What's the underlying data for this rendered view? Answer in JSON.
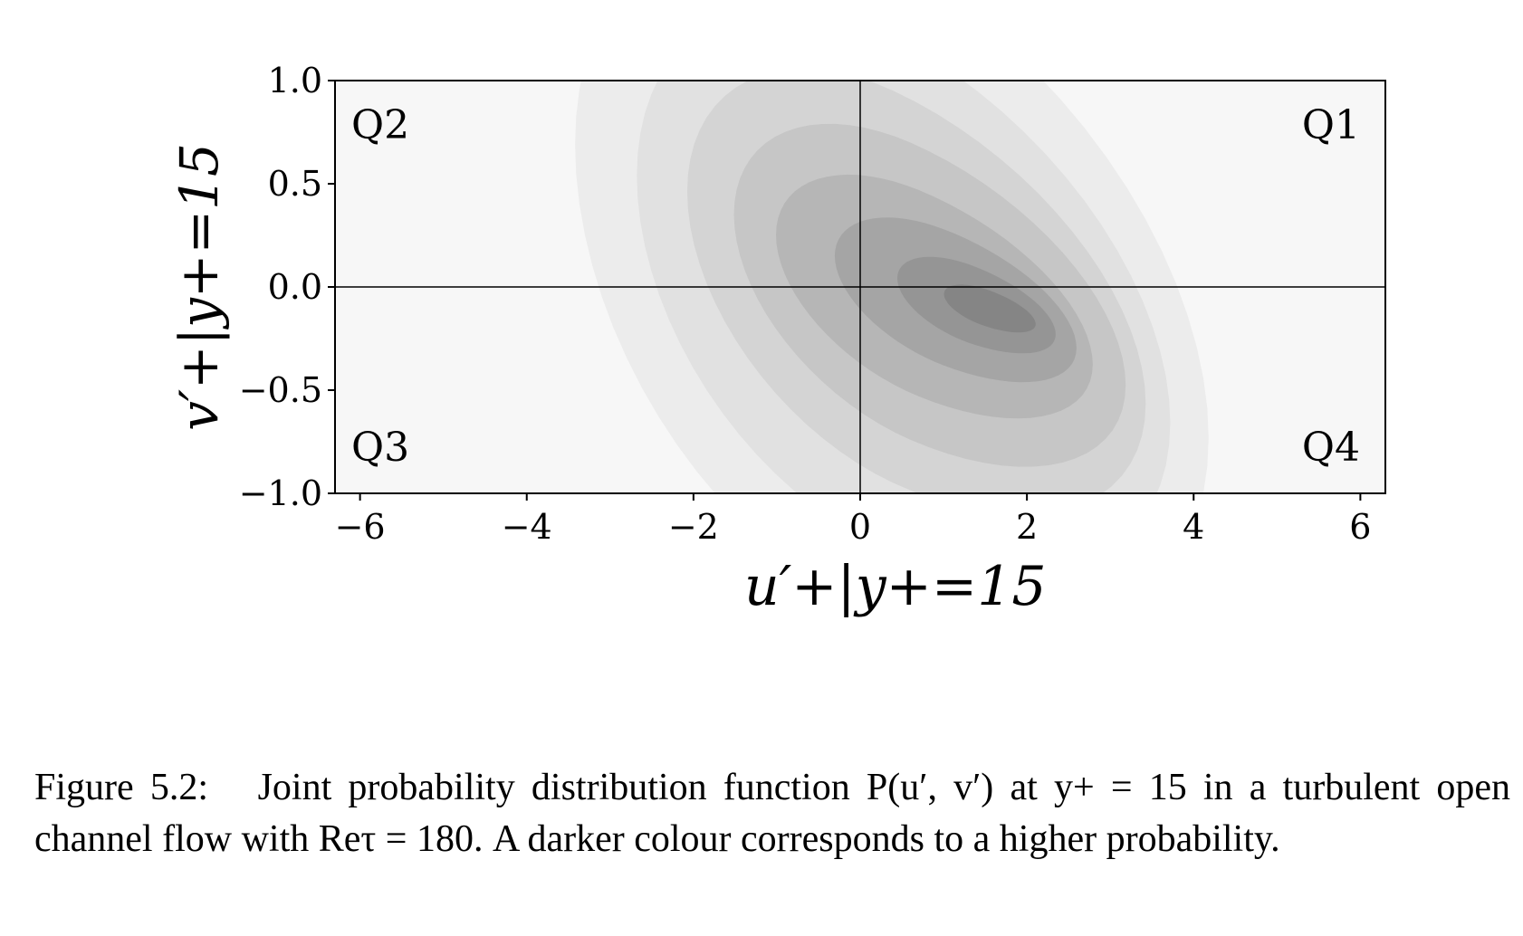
{
  "chart_data": {
    "type": "contour",
    "title": "",
    "xlabel": "u′+|y+=15",
    "ylabel": "v′+|y+=15",
    "xlim": [
      -6.3,
      6.3
    ],
    "ylim": [
      -1.0,
      1.0
    ],
    "xticks": [
      -6,
      -4,
      -2,
      0,
      2,
      4,
      6
    ],
    "xtick_labels": [
      "−6",
      "−4",
      "−2",
      "0",
      "2",
      "4",
      "6"
    ],
    "yticks": [
      1.0,
      0.5,
      0.0,
      -0.5,
      -1.0
    ],
    "ytick_labels": [
      "1.0",
      "0.5",
      "0.0",
      "−0.5",
      "−1.0"
    ],
    "reference_lines": {
      "x": 0,
      "y": 0
    },
    "quadrant_labels": [
      "Q1",
      "Q2",
      "Q3",
      "Q4"
    ],
    "colormap": "grayscale (darker = higher probability)",
    "peak": {
      "x": 1.5,
      "y": -0.1
    },
    "levels": [
      {
        "level": 1,
        "color": "#f7f7f7",
        "center": [
          0.0,
          0.0
        ],
        "sx": 9.0,
        "sy": 2.4,
        "rot": 0.0
      },
      {
        "level": 2,
        "color": "#ececec",
        "center": [
          0.0,
          0.05
        ],
        "sx": 7.6,
        "sy": 1.6,
        "rot": -0.085
      },
      {
        "level": 3,
        "color": "#e1e1e1",
        "center": [
          0.2,
          0.0
        ],
        "sx": 6.4,
        "sy": 1.25,
        "rot": -0.085
      },
      {
        "level": 4,
        "color": "#d4d4d4",
        "center": [
          0.4,
          0.0
        ],
        "sx": 5.5,
        "sy": 0.95,
        "rot": -0.085
      },
      {
        "level": 5,
        "color": "#c6c6c6",
        "center": [
          0.6,
          -0.02
        ],
        "sx": 4.7,
        "sy": 0.72,
        "rot": -0.08
      },
      {
        "level": 6,
        "color": "#b6b6b6",
        "center": [
          0.7,
          -0.03
        ],
        "sx": 3.8,
        "sy": 0.5,
        "rot": -0.075
      },
      {
        "level": 7,
        "color": "#a5a5a5",
        "center": [
          1.0,
          -0.05
        ],
        "sx": 2.9,
        "sy": 0.33,
        "rot": -0.07
      },
      {
        "level": 8,
        "color": "#959595",
        "center": [
          1.3,
          -0.08
        ],
        "sx": 1.9,
        "sy": 0.19,
        "rot": -0.065
      },
      {
        "level": 9,
        "color": "#858585",
        "center": [
          1.5,
          -0.1
        ],
        "sx": 1.1,
        "sy": 0.09,
        "rot": -0.06
      }
    ]
  },
  "caption": {
    "lead": "Figure 5.2:",
    "text": "Joint probability distribution function P(u′, v′) at y+ = 15 in a turbulent open channel flow with Reτ = 180. A darker colour corresponds to a higher probability."
  }
}
